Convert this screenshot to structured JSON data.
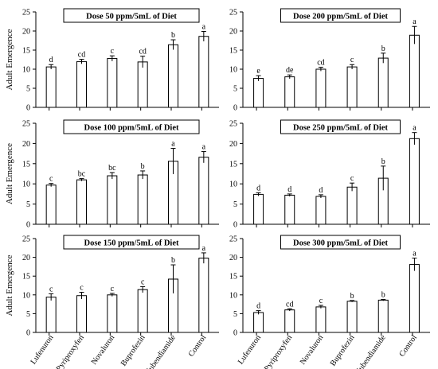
{
  "figure": {
    "ylabel": "Adult Emergence",
    "categories": [
      "Lufenuron",
      "Pyriproxyfen",
      "Novaluron",
      "Buprofezin",
      "Flubendiamide",
      "Control"
    ]
  },
  "chart_data": [
    {
      "type": "bar",
      "title": "Dose 50 ppm/5mL of Diet",
      "ylabel": "Adult Emergence",
      "categories": [
        "Lufenuron",
        "Pyriproxyfen",
        "Novaluron",
        "Buprofezin",
        "Flubendiamide",
        "Control"
      ],
      "values": [
        10.6,
        12.0,
        12.8,
        11.9,
        16.4,
        18.6
      ],
      "errors": [
        0.6,
        0.6,
        0.7,
        1.5,
        1.3,
        1.3
      ],
      "letters": [
        "d",
        "cd",
        "c",
        "cd",
        "b",
        "a"
      ],
      "ylim": [
        0,
        25
      ],
      "yticks": [
        0,
        5,
        10,
        15,
        20,
        25
      ],
      "grid": false,
      "legend": "none",
      "bar_color": "#ffffff"
    },
    {
      "type": "bar",
      "title": "Dose 200 ppm/5mL of Diet",
      "ylabel": "",
      "categories": [
        "Lufenuron",
        "Pyriproxyfen",
        "Novaluron",
        "Buprofezin",
        "Flubendiamide",
        "Control"
      ],
      "values": [
        7.6,
        8.0,
        10.0,
        10.6,
        12.9,
        18.9
      ],
      "errors": [
        0.7,
        0.5,
        0.5,
        0.6,
        1.3,
        2.3
      ],
      "letters": [
        "e",
        "de",
        "cd",
        "c",
        "b",
        "a"
      ],
      "ylim": [
        0,
        25
      ],
      "yticks": [
        0,
        5,
        10,
        15,
        20,
        25
      ],
      "grid": false,
      "legend": "none",
      "bar_color": "#ffffff"
    },
    {
      "type": "bar",
      "title": "Dose 100 ppm/5mL of Diet",
      "ylabel": "Adult Emergence",
      "categories": [
        "Lufenuron",
        "Pyriproxyfen",
        "Novaluron",
        "Buprofezin",
        "Flubendiamide",
        "Control"
      ],
      "values": [
        9.7,
        11.0,
        12.0,
        12.2,
        15.6,
        16.6
      ],
      "errors": [
        0.4,
        0.3,
        0.8,
        1.0,
        3.2,
        1.4
      ],
      "letters": [
        "c",
        "bc",
        "bc",
        "b",
        "a",
        "a"
      ],
      "ylim": [
        0,
        25
      ],
      "yticks": [
        0,
        5,
        10,
        15,
        20,
        25
      ],
      "grid": false,
      "legend": "none",
      "bar_color": "#ffffff"
    },
    {
      "type": "bar",
      "title": "Dose 250 ppm/5mL of Diet",
      "ylabel": "",
      "categories": [
        "Lufenuron",
        "Pyriproxyfen",
        "Novaluron",
        "Buprofezin",
        "Flubendiamide",
        "Control"
      ],
      "values": [
        7.4,
        7.2,
        6.9,
        9.2,
        11.4,
        21.2
      ],
      "errors": [
        0.4,
        0.3,
        0.4,
        1.0,
        3.0,
        1.5
      ],
      "letters": [
        "d",
        "d",
        "d",
        "c",
        "b",
        "a"
      ],
      "ylim": [
        0,
        25
      ],
      "yticks": [
        0,
        5,
        10,
        15,
        20,
        25
      ],
      "grid": false,
      "legend": "none",
      "bar_color": "#ffffff"
    },
    {
      "type": "bar",
      "title": "Dose 150 ppm/5mL of Diet",
      "ylabel": "Adult Emergence",
      "categories": [
        "Lufenuron",
        "Pyriproxyfen",
        "Novaluron",
        "Buprofezin",
        "Flubendiamide",
        "Control"
      ],
      "values": [
        9.4,
        9.8,
        10.0,
        11.4,
        14.2,
        19.8
      ],
      "errors": [
        0.9,
        0.9,
        0.4,
        0.8,
        3.8,
        1.4
      ],
      "letters": [
        "c",
        "c",
        "c",
        "c",
        "b",
        "a"
      ],
      "ylim": [
        0,
        25
      ],
      "yticks": [
        0,
        5,
        10,
        15,
        20,
        25
      ],
      "grid": false,
      "legend": "none",
      "bar_color": "#ffffff"
    },
    {
      "type": "bar",
      "title": "Dose 300 ppm/5mL of Diet",
      "ylabel": "",
      "categories": [
        "Lufenuron",
        "Pyriproxyfen",
        "Novaluron",
        "Buprofezin",
        "Flubendiamide",
        "Control"
      ],
      "values": [
        5.3,
        6.0,
        6.8,
        8.3,
        8.6,
        18.1
      ],
      "errors": [
        0.5,
        0.3,
        0.4,
        0.2,
        0.2,
        1.7
      ],
      "letters": [
        "d",
        "cd",
        "c",
        "b",
        "b",
        "a"
      ],
      "ylim": [
        0,
        25
      ],
      "yticks": [
        0,
        5,
        10,
        15,
        20,
        25
      ],
      "grid": false,
      "legend": "none",
      "bar_color": "#ffffff"
    }
  ]
}
